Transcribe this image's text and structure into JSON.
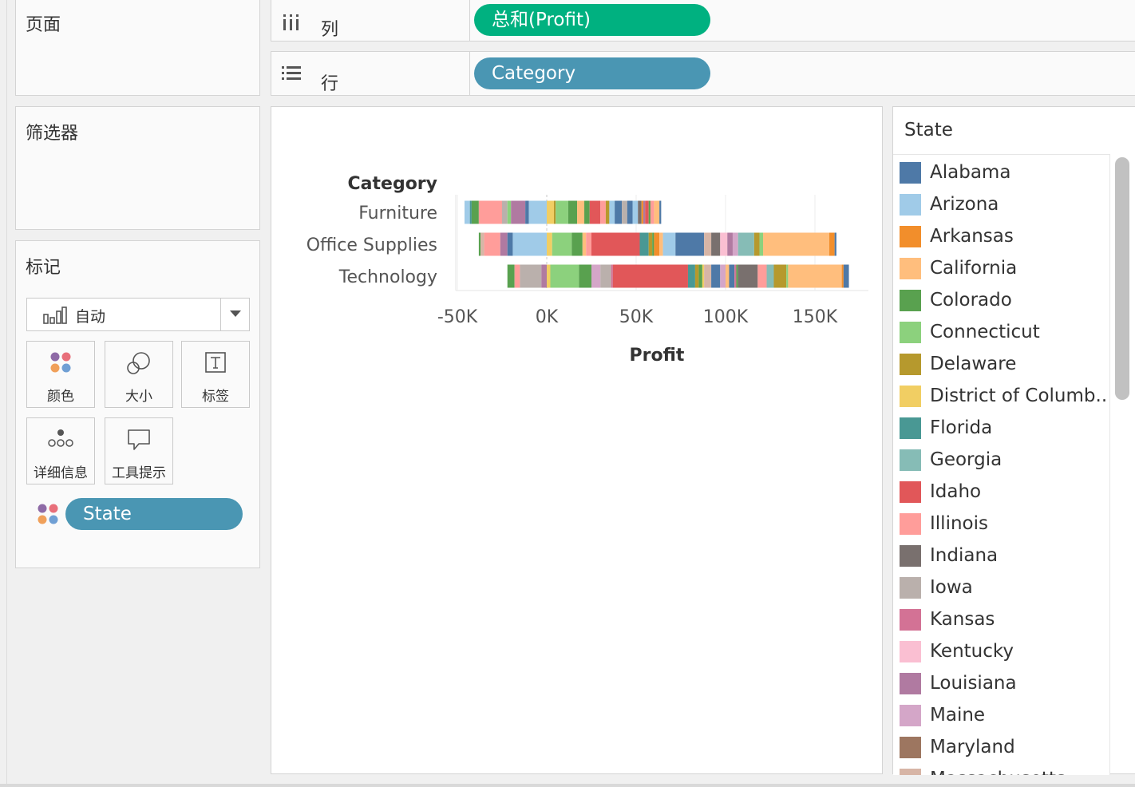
{
  "cards": {
    "pages_title": "页面",
    "filters_title": "筛选器",
    "marks_title": "标记",
    "mark_type": "自动",
    "buttons": [
      {
        "label": "颜色",
        "icon": "color-dots-icon"
      },
      {
        "label": "大小",
        "icon": "size-icon"
      },
      {
        "label": "标签",
        "icon": "text-label-icon"
      },
      {
        "label": "详细信息",
        "icon": "detail-icon"
      },
      {
        "label": "工具提示",
        "icon": "tooltip-icon"
      }
    ],
    "state_pill": "State"
  },
  "shelves": {
    "columns_label": "列",
    "columns_pill": "总和(Profit)",
    "rows_label": "行",
    "rows_pill": "Category"
  },
  "legend": {
    "title": "State",
    "items": [
      {
        "name": "Alabama",
        "color": "#4e79a7"
      },
      {
        "name": "Arizona",
        "color": "#a0cbe8"
      },
      {
        "name": "Arkansas",
        "color": "#f28e2b"
      },
      {
        "name": "California",
        "color": "#ffbe7d"
      },
      {
        "name": "Colorado",
        "color": "#59a14f"
      },
      {
        "name": "Connecticut",
        "color": "#8cd17d"
      },
      {
        "name": "Delaware",
        "color": "#b6992d"
      },
      {
        "name": "District of Columb..",
        "color": "#f1ce63"
      },
      {
        "name": "Florida",
        "color": "#499894"
      },
      {
        "name": "Georgia",
        "color": "#86bcb6"
      },
      {
        "name": "Idaho",
        "color": "#e15759"
      },
      {
        "name": "Illinois",
        "color": "#ff9d9a"
      },
      {
        "name": "Indiana",
        "color": "#79706e"
      },
      {
        "name": "Iowa",
        "color": "#bab0ac"
      },
      {
        "name": "Kansas",
        "color": "#d37295"
      },
      {
        "name": "Kentucky",
        "color": "#fabfd2"
      },
      {
        "name": "Louisiana",
        "color": "#b07aa1"
      },
      {
        "name": "Maine",
        "color": "#d4a6c8"
      },
      {
        "name": "Maryland",
        "color": "#9d7660"
      },
      {
        "name": "Massachusetts",
        "color": "#d7b5a6"
      }
    ]
  },
  "chart_data": {
    "type": "bar",
    "stacked": true,
    "orientation": "horizontal",
    "row_header": "Category",
    "categories": [
      "Furniture",
      "Office Supplies",
      "Technology"
    ],
    "xlabel": "Profit",
    "ylabel": "",
    "xlim": [
      -50000,
      180000
    ],
    "x_ticks": [
      {
        "value": -50000,
        "label": "-50K"
      },
      {
        "value": 0,
        "label": "0K"
      },
      {
        "value": 50000,
        "label": "50K"
      },
      {
        "value": 100000,
        "label": "100K"
      },
      {
        "value": 150000,
        "label": "150K"
      }
    ],
    "colors": [
      "#4e79a7",
      "#a0cbe8",
      "#f28e2b",
      "#ffbe7d",
      "#59a14f",
      "#8cd17d",
      "#b6992d",
      "#f1ce63",
      "#499894",
      "#86bcb6",
      "#e15759",
      "#ff9d9a",
      "#79706e",
      "#bab0ac",
      "#d37295",
      "#fabfd2",
      "#b07aa1",
      "#d4a6c8",
      "#9d7660",
      "#d7b5a6"
    ],
    "segments": [
      [
        {
          "from": -46000,
          "to": -43000,
          "color": "#a0cbe8"
        },
        {
          "from": -43000,
          "to": -42000,
          "color": "#499894"
        },
        {
          "from": -42000,
          "to": -38000,
          "color": "#59a14f"
        },
        {
          "from": -38000,
          "to": -25000,
          "color": "#ff9d9a"
        },
        {
          "from": -25000,
          "to": -22000,
          "color": "#bab0ac"
        },
        {
          "from": -22000,
          "to": -20000,
          "color": "#8cd17d"
        },
        {
          "from": -20000,
          "to": -12000,
          "color": "#b07aa1"
        },
        {
          "from": -12000,
          "to": -10000,
          "color": "#4e79a7"
        },
        {
          "from": -10000,
          "to": 0,
          "color": "#a0cbe8"
        },
        {
          "from": 0,
          "to": 4000,
          "color": "#f1ce63"
        },
        {
          "from": 4000,
          "to": 5000,
          "color": "#b6992d"
        },
        {
          "from": 5000,
          "to": 12000,
          "color": "#8cd17d"
        },
        {
          "from": 12000,
          "to": 17000,
          "color": "#59a14f"
        },
        {
          "from": 17000,
          "to": 21000,
          "color": "#ffbe7d"
        },
        {
          "from": 21000,
          "to": 24000,
          "color": "#59a14f"
        },
        {
          "from": 24000,
          "to": 30000,
          "color": "#e15759"
        },
        {
          "from": 30000,
          "to": 33000,
          "color": "#ff9d9a"
        },
        {
          "from": 33000,
          "to": 35000,
          "color": "#b6992d"
        },
        {
          "from": 35000,
          "to": 38000,
          "color": "#a0cbe8"
        },
        {
          "from": 38000,
          "to": 42000,
          "color": "#4e79a7"
        },
        {
          "from": 42000,
          "to": 45000,
          "color": "#bab0ac"
        },
        {
          "from": 45000,
          "to": 48000,
          "color": "#4e79a7"
        },
        {
          "from": 48000,
          "to": 51000,
          "color": "#a0cbe8"
        },
        {
          "from": 51000,
          "to": 53000,
          "color": "#79706e"
        },
        {
          "from": 53000,
          "to": 54000,
          "color": "#f28e2b"
        },
        {
          "from": 54000,
          "to": 55000,
          "color": "#b07aa1"
        },
        {
          "from": 55000,
          "to": 57000,
          "color": "#e15759"
        },
        {
          "from": 57000,
          "to": 58000,
          "color": "#59a14f"
        },
        {
          "from": 58000,
          "to": 60000,
          "color": "#ff9d9a"
        },
        {
          "from": 60000,
          "to": 63000,
          "color": "#ffbe7d"
        },
        {
          "from": 63000,
          "to": 64000,
          "color": "#4e79a7"
        }
      ],
      [
        {
          "from": -38000,
          "to": -37000,
          "color": "#59a14f"
        },
        {
          "from": -37000,
          "to": -35000,
          "color": "#d7b5a6"
        },
        {
          "from": -35000,
          "to": -26000,
          "color": "#ff9d9a"
        },
        {
          "from": -26000,
          "to": -22000,
          "color": "#b07aa1"
        },
        {
          "from": -22000,
          "to": -19000,
          "color": "#4e79a7"
        },
        {
          "from": -19000,
          "to": 0,
          "color": "#a0cbe8"
        },
        {
          "from": 0,
          "to": 3000,
          "color": "#f1ce63"
        },
        {
          "from": 3000,
          "to": 14000,
          "color": "#8cd17d"
        },
        {
          "from": 14000,
          "to": 20000,
          "color": "#59a14f"
        },
        {
          "from": 20000,
          "to": 22000,
          "color": "#ffbe7d"
        },
        {
          "from": 22000,
          "to": 25000,
          "color": "#ff9d9a"
        },
        {
          "from": 25000,
          "to": 52000,
          "color": "#e15759"
        },
        {
          "from": 52000,
          "to": 57000,
          "color": "#499894"
        },
        {
          "from": 57000,
          "to": 59000,
          "color": "#b6992d"
        },
        {
          "from": 59000,
          "to": 60000,
          "color": "#59a14f"
        },
        {
          "from": 60000,
          "to": 63000,
          "color": "#f28e2b"
        },
        {
          "from": 63000,
          "to": 65000,
          "color": "#ffbe7d"
        },
        {
          "from": 65000,
          "to": 72000,
          "color": "#a0cbe8"
        },
        {
          "from": 72000,
          "to": 88000,
          "color": "#4e79a7"
        },
        {
          "from": 88000,
          "to": 92000,
          "color": "#d7b5a6"
        },
        {
          "from": 92000,
          "to": 97000,
          "color": "#79706e"
        },
        {
          "from": 97000,
          "to": 101000,
          "color": "#fabfd2"
        },
        {
          "from": 101000,
          "to": 104000,
          "color": "#b07aa1"
        },
        {
          "from": 104000,
          "to": 107000,
          "color": "#d4a6c8"
        },
        {
          "from": 107000,
          "to": 116000,
          "color": "#86bcb6"
        },
        {
          "from": 116000,
          "to": 119000,
          "color": "#b6992d"
        },
        {
          "from": 119000,
          "to": 121000,
          "color": "#8cd17d"
        },
        {
          "from": 121000,
          "to": 158000,
          "color": "#ffbe7d"
        },
        {
          "from": 158000,
          "to": 161000,
          "color": "#f28e2b"
        },
        {
          "from": 161000,
          "to": 162000,
          "color": "#4e79a7"
        }
      ],
      [
        {
          "from": -22000,
          "to": -18000,
          "color": "#59a14f"
        },
        {
          "from": -18000,
          "to": -15000,
          "color": "#ff9d9a"
        },
        {
          "from": -15000,
          "to": -3000,
          "color": "#bab0ac"
        },
        {
          "from": -3000,
          "to": 0,
          "color": "#b07aa1"
        },
        {
          "from": 0,
          "to": 2000,
          "color": "#f1ce63"
        },
        {
          "from": 2000,
          "to": 18000,
          "color": "#8cd17d"
        },
        {
          "from": 18000,
          "to": 25000,
          "color": "#59a14f"
        },
        {
          "from": 25000,
          "to": 30000,
          "color": "#d4a6c8"
        },
        {
          "from": 30000,
          "to": 36000,
          "color": "#bab0ac"
        },
        {
          "from": 36000,
          "to": 37000,
          "color": "#d37295"
        },
        {
          "from": 37000,
          "to": 79000,
          "color": "#e15759"
        },
        {
          "from": 79000,
          "to": 83000,
          "color": "#499894"
        },
        {
          "from": 83000,
          "to": 85000,
          "color": "#b6992d"
        },
        {
          "from": 85000,
          "to": 87000,
          "color": "#59a14f"
        },
        {
          "from": 87000,
          "to": 88000,
          "color": "#f1ce63"
        },
        {
          "from": 88000,
          "to": 92000,
          "color": "#d7b5a6"
        },
        {
          "from": 92000,
          "to": 97000,
          "color": "#4e79a7"
        },
        {
          "from": 97000,
          "to": 100000,
          "color": "#d4a6c8"
        },
        {
          "from": 100000,
          "to": 102000,
          "color": "#ffbe7d"
        },
        {
          "from": 102000,
          "to": 105000,
          "color": "#4e79a7"
        },
        {
          "from": 105000,
          "to": 106000,
          "color": "#d37295"
        },
        {
          "from": 106000,
          "to": 107000,
          "color": "#59a14f"
        },
        {
          "from": 107000,
          "to": 118000,
          "color": "#79706e"
        },
        {
          "from": 118000,
          "to": 123000,
          "color": "#ff9d9a"
        },
        {
          "from": 123000,
          "to": 127000,
          "color": "#86bcb6"
        },
        {
          "from": 127000,
          "to": 134000,
          "color": "#b6992d"
        },
        {
          "from": 134000,
          "to": 135000,
          "color": "#8cd17d"
        },
        {
          "from": 135000,
          "to": 165000,
          "color": "#ffbe7d"
        },
        {
          "from": 165000,
          "to": 166000,
          "color": "#f28e2b"
        },
        {
          "from": 166000,
          "to": 169000,
          "color": "#4e79a7"
        }
      ]
    ]
  }
}
